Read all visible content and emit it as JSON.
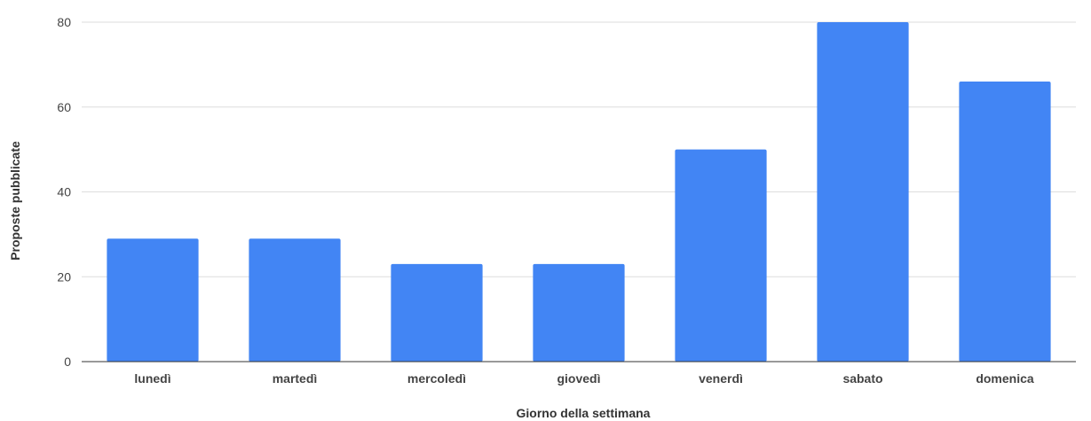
{
  "chart_data": {
    "type": "bar",
    "title": "",
    "xlabel": "Giorno della settimana",
    "ylabel": "Proposte pubblicate",
    "categories": [
      "lunedì",
      "martedì",
      "mercoledì",
      "giovedì",
      "venerdì",
      "sabato",
      "domenica"
    ],
    "values": [
      29,
      29,
      23,
      23,
      50,
      80,
      66
    ],
    "ylim": [
      0,
      80
    ],
    "yticks": [
      0,
      20,
      40,
      60,
      80
    ],
    "grid": true,
    "legend": "none",
    "colors": {
      "bar": "#4285f4",
      "grid": "#dddddd",
      "axis": "#333333"
    }
  }
}
